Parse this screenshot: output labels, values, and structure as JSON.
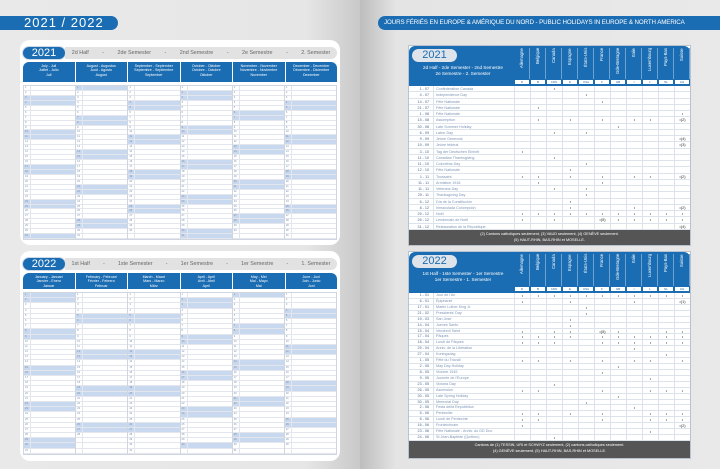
{
  "left": {
    "title": "2021 / 2022",
    "calendars": [
      {
        "year": "2021",
        "semester": [
          "2d Half",
          "-",
          "2de Semester",
          "-",
          "2nd Semestre",
          "-",
          "2e Semestre",
          "-",
          "2. Semester"
        ],
        "months": [
          [
            "July - Juli",
            "Juillet - Julio",
            "Juli"
          ],
          [
            "August - Augustus",
            "Août - Agosto",
            "August"
          ],
          [
            "September - September",
            "Septembre - Septiembre",
            "September"
          ],
          [
            "October - Oktober",
            "Octobre - Octubre",
            "Oktober"
          ],
          [
            "November - November",
            "Novembre - Noviembre",
            "November"
          ],
          [
            "December - December",
            "Décembre - Diciembre",
            "Dezember"
          ]
        ]
      },
      {
        "year": "2022",
        "semester": [
          "1st Half",
          "-",
          "1ste Semester",
          "-",
          "1er Semestre",
          "-",
          "1er Semestre",
          "-",
          "1. Semester"
        ],
        "months": [
          [
            "January - Januari",
            "Janvier - Enero",
            "Januar"
          ],
          [
            "February - Februari",
            "Février - Febrero",
            "Februar"
          ],
          [
            "March - Maart",
            "Mars - Marzo",
            "März"
          ],
          [
            "April - April",
            "Avril - Abril",
            "April"
          ],
          [
            "May - Mei",
            "Mai - Mayo",
            "Mai"
          ],
          [
            "June - Juni",
            "Juin - Junio",
            "Juni"
          ]
        ]
      }
    ]
  },
  "right": {
    "title": "JOURS FÉRIÉS EN EUROPE & AMÉRIQUE DU NORD - PUBLIC HOLIDAYS IN EUROPE & NORTH AMERICA",
    "countries": [
      {
        "name": "Allemagne",
        "code": "D"
      },
      {
        "name": "Belgique",
        "code": "B"
      },
      {
        "name": "Canada",
        "code": "CDN"
      },
      {
        "name": "Espagne",
        "code": "E"
      },
      {
        "name": "États-Unis",
        "code": "USA"
      },
      {
        "name": "France",
        "code": "F"
      },
      {
        "name": "Gde-Bretagne",
        "code": "GB"
      },
      {
        "name": "Italie",
        "code": "I"
      },
      {
        "name": "Luxembourg",
        "code": "L"
      },
      {
        "name": "Pays-Bas",
        "code": "NL"
      },
      {
        "name": "Suisse",
        "code": "CH"
      }
    ],
    "tables": [
      {
        "year": "2021",
        "subtitle": [
          "2d Half - 2de Semester - 2nd Semestre",
          "2e Semestre - 2. Semester"
        ],
        "holidays": [
          {
            "date": "1 - 07",
            "name": "Confédération Canada",
            "marks": {
              "CDN": "•"
            }
          },
          {
            "date": "4 - 07",
            "name": "Independence Day",
            "marks": {
              "USA": "•"
            }
          },
          {
            "date": "14 - 07",
            "name": "Fête Nationale",
            "marks": {
              "F": "•"
            }
          },
          {
            "date": "21 - 07",
            "name": "Fête Nationale",
            "marks": {
              "B": "•"
            }
          },
          {
            "date": "1 - 08",
            "name": "Fête Nationale",
            "marks": {
              "CH": "•"
            }
          },
          {
            "date": "15 - 08",
            "name": "Assomption",
            "marks": {
              "B": "•",
              "E": "•",
              "F": "•",
              "I": "•",
              "L": "•",
              "CH": "•(2)"
            }
          },
          {
            "date": "30 - 08",
            "name": "Late Summer Holiday",
            "marks": {
              "GB": "•"
            }
          },
          {
            "date": "6 - 09",
            "name": "Labor Day",
            "marks": {
              "CDN": "•",
              "USA": "•"
            }
          },
          {
            "date": "9 - 09",
            "name": "Jeûne Genevois",
            "marks": {
              "CH": "•(4)"
            }
          },
          {
            "date": "19 - 09",
            "name": "Jeûne fédéral",
            "marks": {
              "CH": "•(3)"
            }
          },
          {
            "date": "3 - 10",
            "name": "Tag der Deutschen Einheit",
            "marks": {
              "D": "•"
            }
          },
          {
            "date": "11 - 10",
            "name": "Canadian Thanksgiving",
            "marks": {
              "CDN": "•"
            }
          },
          {
            "date": "11 - 10",
            "name": "Columbus Day",
            "marks": {
              "USA": "•"
            }
          },
          {
            "date": "12 - 10",
            "name": "Fête Nationale",
            "marks": {
              "E": "•"
            }
          },
          {
            "date": "1 - 11",
            "name": "Toussaint",
            "marks": {
              "D": "•",
              "B": "•",
              "E": "•",
              "F": "•",
              "I": "•",
              "L": "•",
              "CH": "•(2)"
            }
          },
          {
            "date": "11 - 11",
            "name": "Armistice 1918",
            "marks": {
              "B": "•",
              "F": "•"
            }
          },
          {
            "date": "11 - 11",
            "name": "Veterans Day",
            "marks": {
              "CDN": "•",
              "USA": "•"
            }
          },
          {
            "date": "25 - 11",
            "name": "Thanksgiving Day",
            "marks": {
              "USA": "•"
            }
          },
          {
            "date": "6 - 12",
            "name": "Día de la Constitución",
            "marks": {
              "E": "•"
            }
          },
          {
            "date": "8 - 12",
            "name": "Inmaculada Concepción",
            "marks": {
              "E": "•",
              "I": "•",
              "CH": "•(2)"
            }
          },
          {
            "date": "25 - 12",
            "name": "Noël",
            "marks": {
              "D": "•",
              "B": "•",
              "CDN": "•",
              "E": "•",
              "USA": "•",
              "F": "•",
              "GB": "•",
              "I": "•",
              "L": "•",
              "NL": "•",
              "CH": "•"
            }
          },
          {
            "date": "26 - 12",
            "name": "Lendemain de Noël",
            "marks": {
              "D": "•",
              "CDN": "•",
              "F": "•(5)",
              "GB": "•",
              "I": "•",
              "L": "•",
              "NL": "•",
              "CH": "•"
            }
          },
          {
            "date": "31 - 12",
            "name": "Restauration de la République",
            "marks": {
              "CH": "•(4)"
            }
          }
        ],
        "footnote": [
          "(2) Cantons catholiques seulement, (3) VAUD seulement, (4) GENÈVE seulement.",
          "(5) HAUT-RHIN, BAS-RHIN et MOSELLE."
        ]
      },
      {
        "year": "2022",
        "subtitle": [
          "1st Half - 1ste Semester - 1er Semestre",
          "1er Semestre - 1. Semester"
        ],
        "holidays": [
          {
            "date": "1 - 01",
            "name": "Jour de l'An",
            "marks": {
              "D": "•",
              "B": "•",
              "CDN": "•",
              "E": "•",
              "USA": "•",
              "F": "•",
              "GB": "•",
              "I": "•",
              "L": "•",
              "NL": "•",
              "CH": "•"
            }
          },
          {
            "date": "6 - 01",
            "name": "Épiphanie",
            "marks": {
              "D": "•",
              "E": "•",
              "I": "•",
              "CH": "•(1)"
            }
          },
          {
            "date": "17 - 01",
            "name": "Martin Luther King Jr.",
            "marks": {
              "USA": "•"
            }
          },
          {
            "date": "21 - 02",
            "name": "Presidents' Day",
            "marks": {
              "USA": "•"
            }
          },
          {
            "date": "19 - 03",
            "name": "San José",
            "marks": {
              "E": "•"
            }
          },
          {
            "date": "14 - 04",
            "name": "Jueves Santo",
            "marks": {
              "E": "•"
            }
          },
          {
            "date": "15 - 04",
            "name": "Vendredi Saint",
            "marks": {
              "D": "•",
              "CDN": "•",
              "E": "•",
              "F": "•(5)",
              "GB": "•",
              "NL": "•",
              "CH": "•"
            }
          },
          {
            "date": "17 - 04",
            "name": "Pâques",
            "marks": {
              "D": "•",
              "B": "•",
              "CDN": "•",
              "E": "•",
              "F": "•",
              "GB": "•",
              "I": "•",
              "L": "•",
              "NL": "•",
              "CH": "•"
            }
          },
          {
            "date": "18 - 04",
            "name": "Lundi de Pâques",
            "marks": {
              "D": "•",
              "B": "•",
              "CDN": "•",
              "F": "•",
              "GB": "•",
              "I": "•",
              "L": "•",
              "NL": "•",
              "CH": "•"
            }
          },
          {
            "date": "25 - 04",
            "name": "Anniv. de la Libération",
            "marks": {
              "I": "•"
            }
          },
          {
            "date": "27 - 04",
            "name": "Koningsdag",
            "marks": {
              "NL": "•"
            }
          },
          {
            "date": "1 - 05",
            "name": "Fête du Travail",
            "marks": {
              "D": "•",
              "B": "•",
              "E": "•",
              "F": "•",
              "I": "•",
              "L": "•",
              "CH": "•"
            }
          },
          {
            "date": "2 - 05",
            "name": "May Day Holiday",
            "marks": {
              "GB": "•"
            }
          },
          {
            "date": "8 - 05",
            "name": "Victoire 1945",
            "marks": {
              "F": "•"
            }
          },
          {
            "date": "9 - 05",
            "name": "Journée de l'Europe",
            "marks": {
              "L": "•"
            }
          },
          {
            "date": "23 - 05",
            "name": "Victoria Day",
            "marks": {
              "CDN": "•"
            }
          },
          {
            "date": "26 - 05",
            "name": "Ascension",
            "marks": {
              "D": "•",
              "B": "•",
              "F": "•",
              "L": "•",
              "NL": "•",
              "CH": "•"
            }
          },
          {
            "date": "30 - 05",
            "name": "Late Spring Holiday",
            "marks": {
              "GB": "•"
            }
          },
          {
            "date": "30 - 05",
            "name": "Memorial Day",
            "marks": {
              "USA": "•"
            }
          },
          {
            "date": "2 - 06",
            "name": "Festa della Repubblica",
            "marks": {
              "I": "•"
            }
          },
          {
            "date": "5 - 06",
            "name": "Pentecôte",
            "marks": {
              "D": "•",
              "B": "•",
              "E": "•",
              "F": "•",
              "L": "•",
              "NL": "•",
              "CH": "•"
            }
          },
          {
            "date": "6 - 06",
            "name": "Lundi de Pentecôte",
            "marks": {
              "D": "•",
              "B": "•",
              "F": "•",
              "L": "•",
              "NL": "•",
              "CH": "•"
            }
          },
          {
            "date": "16 - 06",
            "name": "Fronleichnam",
            "marks": {
              "D": "•",
              "CH": "•(2)"
            }
          },
          {
            "date": "23 - 06",
            "name": "Fête Nationale - Anniv. du GD Duc",
            "marks": {
              "L": "•"
            }
          },
          {
            "date": "24 - 06",
            "name": "St Jean-Baptiste (Québec)",
            "marks": {
              "CDN": "•"
            }
          }
        ],
        "footnote": [
          "Cantons de (1) TESSIN, URI et SCHWYZ seulement, (2) cantons catholiques seulement.",
          "(4) GENÈVE seulement, (5) HAUT-RHIN, BAS-RHIN et MOSELLE."
        ]
      }
    ]
  },
  "colors": {
    "accent": "#1b6db3",
    "weekend": "#c8d8ee",
    "footer": "#555555"
  }
}
